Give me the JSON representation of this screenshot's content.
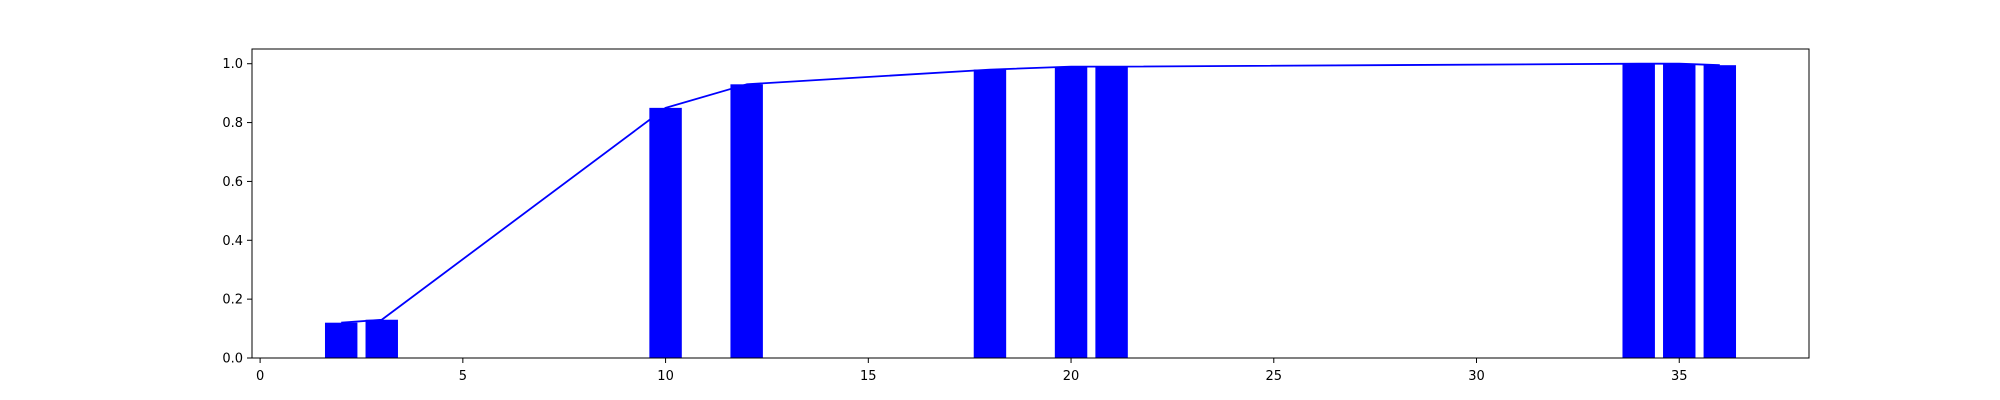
{
  "chart_data": {
    "type": "bar",
    "x": [
      2,
      3,
      10,
      12,
      18,
      20,
      21,
      34,
      35,
      36
    ],
    "values": [
      0.12,
      0.13,
      0.85,
      0.93,
      0.98,
      0.99,
      0.99,
      1.0,
      1.0,
      0.995
    ],
    "bar_width": 0.8,
    "line_overlay": true,
    "title": "",
    "xlabel": "",
    "ylabel": "",
    "xlim": [
      -0.2,
      38.2
    ],
    "ylim": [
      0,
      1.05
    ],
    "xticks": [
      0,
      5,
      10,
      15,
      20,
      25,
      30,
      35
    ],
    "yticks": [
      0.0,
      0.2,
      0.4,
      0.6,
      0.8,
      1.0
    ],
    "xtick_labels": [
      "0",
      "5",
      "10",
      "15",
      "20",
      "25",
      "30",
      "35"
    ],
    "ytick_labels": [
      "0.0",
      "0.2",
      "0.4",
      "0.6",
      "0.8",
      "1.0"
    ],
    "grid": false,
    "colors": {
      "bars": "#0000ff",
      "line": "#0000ff",
      "axes": "#000000"
    }
  }
}
